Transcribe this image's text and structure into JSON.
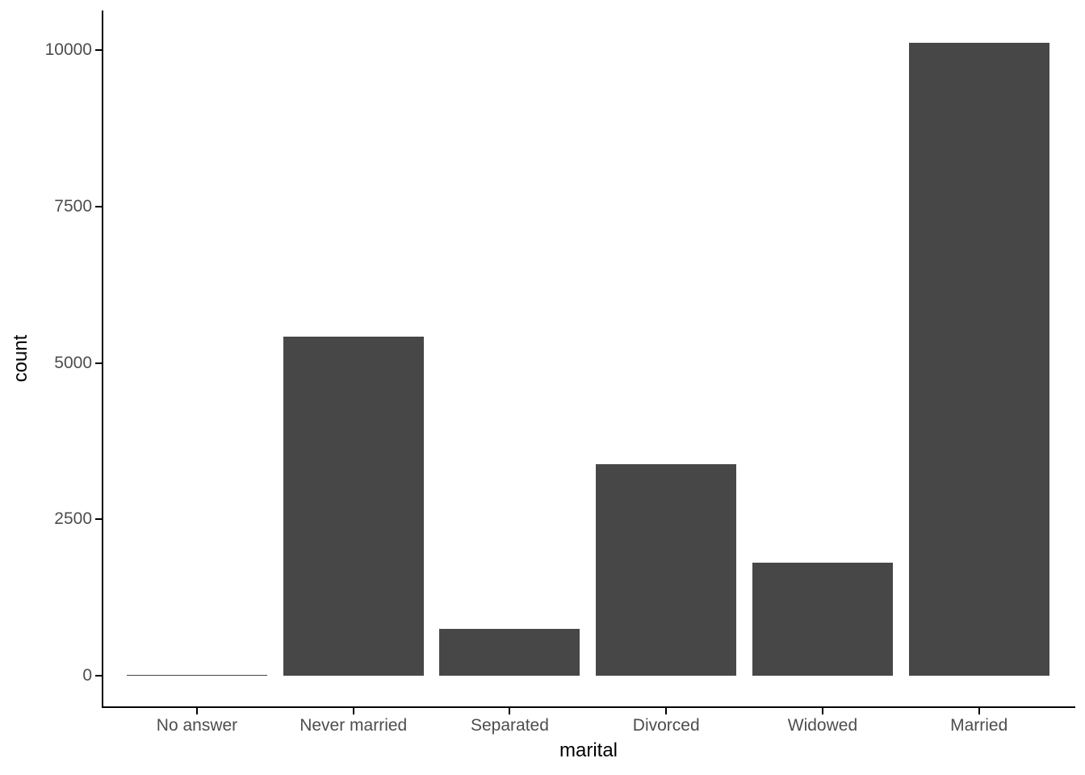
{
  "figure": {
    "background": "#FFFFFF"
  },
  "chart_data": {
    "type": "bar",
    "categories": [
      "No answer",
      "Never married",
      "Separated",
      "Divorced",
      "Widowed",
      "Married"
    ],
    "values": [
      17,
      5416,
      743,
      3383,
      1807,
      10117
    ],
    "title": "",
    "xlabel": "marital",
    "ylabel": "count",
    "ylim": [
      0,
      10500
    ],
    "yticks": [
      0,
      2500,
      5000,
      7500,
      10000
    ],
    "ytick_labels": [
      "0",
      "2500",
      "5000",
      "7500",
      "10000"
    ],
    "bar_fill": "#474747",
    "axis_line_color": "#000000",
    "tick_label_color": "#4D4D4D",
    "axis_title_color": "#000000",
    "grid": false,
    "legend_position": "none"
  }
}
